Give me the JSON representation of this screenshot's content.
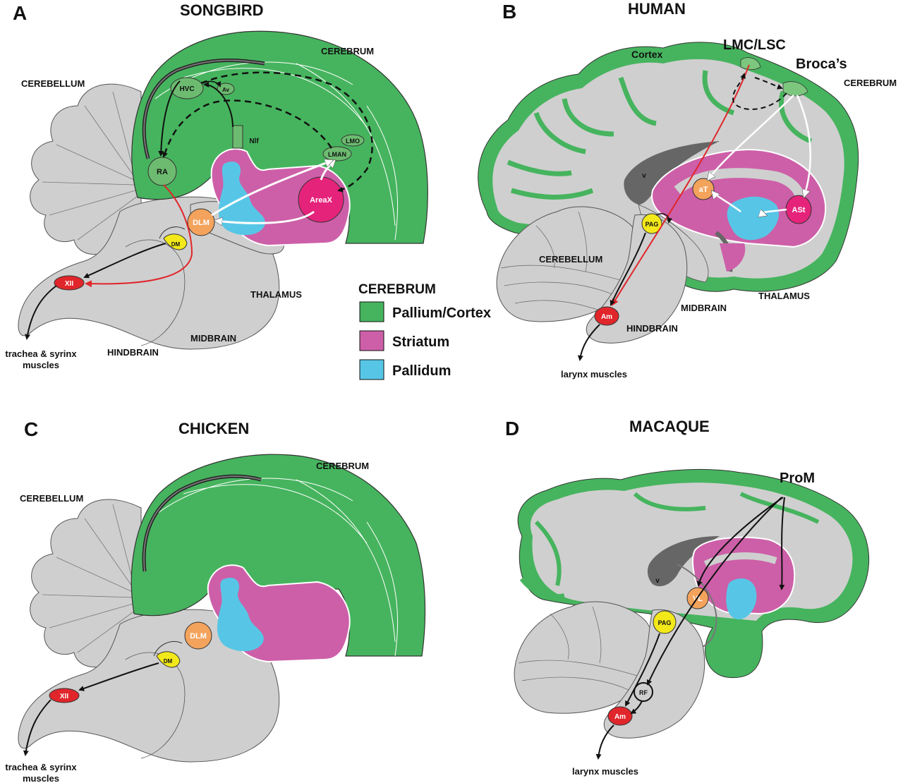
{
  "colors": {
    "pallium": "#46b45e",
    "striatum": "#cd5fa8",
    "pallidum": "#57c6e6",
    "tissue": "#cfcfcf",
    "nucleus_orange": "#f4a35c",
    "nucleus_yellow": "#f2e81a",
    "nucleus_red": "#e0262b",
    "areax_pink": "#e5237b",
    "ventricle": "#666666",
    "pathway_red": "#e0262b"
  },
  "panels": {
    "a": {
      "letter": "A",
      "title": "SONGBIRD",
      "regions": {
        "cerebrum": "CEREBRUM",
        "cerebellum": "CEREBELLUM",
        "thalamus": "THALAMUS",
        "midbrain": "MIDBRAIN",
        "hindbrain": "HINDBRAIN"
      },
      "nuclei": {
        "hvc": "HVC",
        "av": "Av",
        "nif": "Nlf",
        "lmo": "LMO",
        "lman": "LMAN",
        "ra": "RA",
        "areax": "AreaX",
        "dlm": "DLM",
        "dm": "DM",
        "xii": "XII"
      },
      "output": [
        "trachea & syrinx",
        "muscles"
      ]
    },
    "b": {
      "letter": "B",
      "title": "HUMAN",
      "regions": {
        "cortex": "Cortex",
        "cerebrum": "CEREBRUM",
        "cerebellum": "CEREBELLUM",
        "thalamus": "THALAMUS",
        "midbrain": "MIDBRAIN",
        "hindbrain": "HINDBRAIN"
      },
      "areas": {
        "lmc": "LMC/LSC",
        "broca": "Broca’s"
      },
      "nuclei": {
        "v": "v",
        "at": "aT",
        "ast": "ASt",
        "pag": "PAG",
        "am": "Am"
      },
      "output": "larynx muscles"
    },
    "c": {
      "letter": "C",
      "title": "CHICKEN",
      "regions": {
        "cerebrum": "CEREBRUM",
        "cerebellum": "CEREBELLUM"
      },
      "nuclei": {
        "dlm": "DLM",
        "dm": "DM",
        "xii": "XII"
      },
      "output": [
        "trachea & syrinx",
        "muscles"
      ]
    },
    "d": {
      "letter": "D",
      "title": "MACAQUE",
      "areas": {
        "prom": "ProM"
      },
      "nuclei": {
        "v": "v",
        "vl": "VL",
        "pag": "PAG",
        "rf": "RF",
        "am": "Am"
      },
      "output": "larynx muscles"
    }
  },
  "legend": {
    "title": "CEREBRUM",
    "items": [
      {
        "label": "Pallium/Cortex",
        "color": "#46b45e"
      },
      {
        "label": "Striatum",
        "color": "#cd5fa8"
      },
      {
        "label": "Pallidum",
        "color": "#57c6e6"
      }
    ]
  }
}
